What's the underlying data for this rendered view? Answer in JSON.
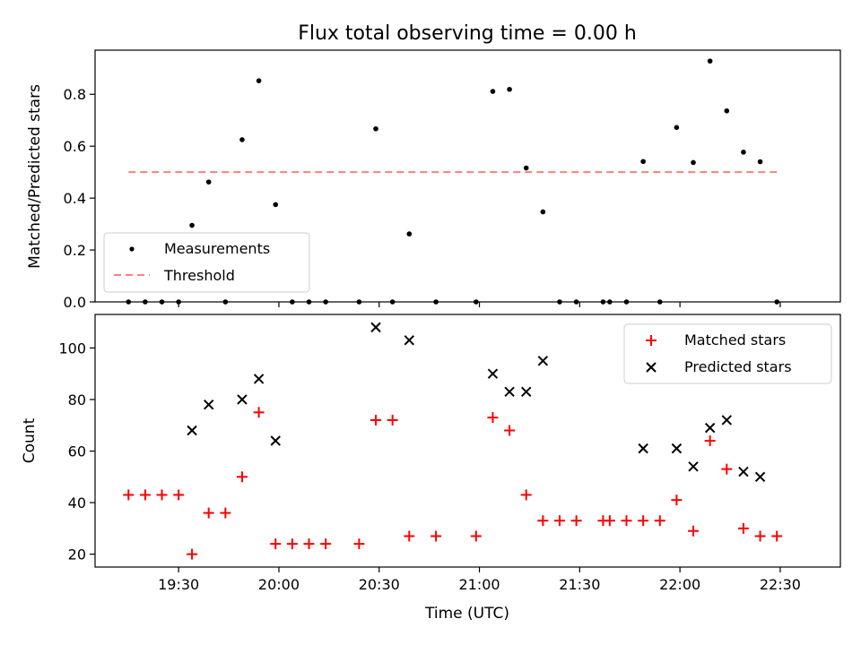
{
  "chart_data": [
    {
      "type": "scatter",
      "title": "Flux total observing time = 0.00 h",
      "xlabel": "",
      "ylabel": "Matched/Predicted stars",
      "xlim": [
        "19:05",
        "22:48"
      ],
      "ylim": [
        0,
        0.97
      ],
      "x_ticks": [
        "19:30",
        "20:00",
        "20:30",
        "21:00",
        "21:30",
        "22:00",
        "22:30"
      ],
      "y_ticks": [
        0.0,
        0.2,
        0.4,
        0.6,
        0.8
      ],
      "y_tick_labels": [
        "0.0",
        "0.2",
        "0.4",
        "0.6",
        "0.8"
      ],
      "legend": {
        "placement": "lower-left",
        "entries": [
          "Measurements",
          "Threshold"
        ]
      },
      "colors": {
        "measurements": "#000000",
        "threshold": "#ff7f7f"
      },
      "series": [
        {
          "name": "Measurements",
          "marker": "dot",
          "points": [
            [
              "19:15",
              0.0
            ],
            [
              "19:20",
              0.0
            ],
            [
              "19:25",
              0.0
            ],
            [
              "19:30",
              0.0
            ],
            [
              "19:34",
              0.295
            ],
            [
              "19:39",
              0.462
            ],
            [
              "19:44",
              0.0
            ],
            [
              "19:49",
              0.625
            ],
            [
              "19:54",
              0.852
            ],
            [
              "19:59",
              0.375
            ],
            [
              "20:04",
              0.0
            ],
            [
              "20:09",
              0.0
            ],
            [
              "20:14",
              0.0
            ],
            [
              "20:24",
              0.0
            ],
            [
              "20:29",
              0.667
            ],
            [
              "20:34",
              0.0
            ],
            [
              "20:39",
              0.262
            ],
            [
              "20:47",
              0.0
            ],
            [
              "20:59",
              0.0
            ],
            [
              "21:04",
              0.811
            ],
            [
              "21:09",
              0.819
            ],
            [
              "21:14",
              0.516
            ],
            [
              "21:19",
              0.347
            ],
            [
              "21:24",
              0.0
            ],
            [
              "21:29",
              0.0
            ],
            [
              "21:37",
              0.0
            ],
            [
              "21:39",
              0.0
            ],
            [
              "21:44",
              0.0
            ],
            [
              "21:49",
              0.541
            ],
            [
              "21:54",
              0.0
            ],
            [
              "21:59",
              0.672
            ],
            [
              "22:04",
              0.537
            ],
            [
              "22:09",
              0.928
            ],
            [
              "22:14",
              0.736
            ],
            [
              "22:19",
              0.577
            ],
            [
              "22:24",
              0.54
            ],
            [
              "22:29",
              0.0
            ]
          ]
        },
        {
          "name": "Threshold",
          "marker": "dashed-line",
          "points": [
            [
              "19:15",
              0.5
            ],
            [
              "22:29",
              0.5
            ]
          ]
        }
      ]
    },
    {
      "type": "scatter",
      "title": "",
      "xlabel": "Time (UTC)",
      "ylabel": "Count",
      "xlim": [
        "19:05",
        "22:48"
      ],
      "ylim": [
        15,
        113
      ],
      "x_ticks": [
        "19:30",
        "20:00",
        "20:30",
        "21:00",
        "21:30",
        "22:00",
        "22:30"
      ],
      "y_ticks": [
        20,
        40,
        60,
        80,
        100
      ],
      "legend": {
        "placement": "upper-right",
        "entries": [
          "Matched stars",
          "Predicted stars"
        ]
      },
      "colors": {
        "matched": "#ff0000",
        "predicted": "#000000"
      },
      "series": [
        {
          "name": "Matched stars",
          "marker": "plus",
          "points": [
            [
              "19:15",
              43
            ],
            [
              "19:20",
              43
            ],
            [
              "19:25",
              43
            ],
            [
              "19:30",
              43
            ],
            [
              "19:34",
              20
            ],
            [
              "19:39",
              36
            ],
            [
              "19:44",
              36
            ],
            [
              "19:49",
              50
            ],
            [
              "19:54",
              75
            ],
            [
              "19:59",
              24
            ],
            [
              "20:04",
              24
            ],
            [
              "20:09",
              24
            ],
            [
              "20:14",
              24
            ],
            [
              "20:24",
              24
            ],
            [
              "20:29",
              72
            ],
            [
              "20:34",
              72
            ],
            [
              "20:39",
              27
            ],
            [
              "20:47",
              27
            ],
            [
              "20:59",
              27
            ],
            [
              "21:04",
              73
            ],
            [
              "21:09",
              68
            ],
            [
              "21:14",
              43
            ],
            [
              "21:19",
              33
            ],
            [
              "21:24",
              33
            ],
            [
              "21:29",
              33
            ],
            [
              "21:37",
              33
            ],
            [
              "21:39",
              33
            ],
            [
              "21:44",
              33
            ],
            [
              "21:49",
              33
            ],
            [
              "21:54",
              33
            ],
            [
              "21:59",
              41
            ],
            [
              "22:04",
              29
            ],
            [
              "22:09",
              64
            ],
            [
              "22:14",
              53
            ],
            [
              "22:19",
              30
            ],
            [
              "22:24",
              27
            ],
            [
              "22:29",
              27
            ]
          ]
        },
        {
          "name": "Predicted stars",
          "marker": "x",
          "points": [
            [
              "19:34",
              68
            ],
            [
              "19:39",
              78
            ],
            [
              "19:49",
              80
            ],
            [
              "19:54",
              88
            ],
            [
              "19:59",
              64
            ],
            [
              "20:29",
              108
            ],
            [
              "20:39",
              103
            ],
            [
              "21:04",
              90
            ],
            [
              "21:09",
              83
            ],
            [
              "21:14",
              83
            ],
            [
              "21:19",
              95
            ],
            [
              "21:49",
              61
            ],
            [
              "21:59",
              61
            ],
            [
              "22:04",
              54
            ],
            [
              "22:09",
              69
            ],
            [
              "22:14",
              72
            ],
            [
              "22:19",
              52
            ],
            [
              "22:24",
              50
            ]
          ]
        }
      ]
    }
  ]
}
